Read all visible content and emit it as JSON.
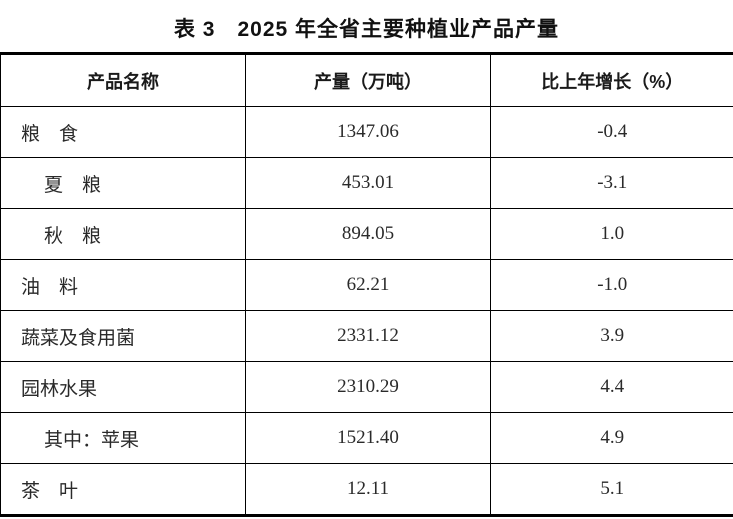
{
  "title": "表 3　2025 年全省主要种植业产品产量",
  "table": {
    "headers": [
      "产品名称",
      "产量（万吨）",
      "比上年增长（%）"
    ],
    "rows": [
      {
        "name": "粮　食",
        "output": "1347.06",
        "growth": "-0.4"
      },
      {
        "name": "夏　粮",
        "output": "453.01",
        "growth": "-3.1"
      },
      {
        "name": "秋　粮",
        "output": "894.05",
        "growth": "1.0"
      },
      {
        "name": "油　料",
        "output": "62.21",
        "growth": "-1.0"
      },
      {
        "name": "蔬菜及食用菌",
        "output": "2331.12",
        "growth": "3.9"
      },
      {
        "name": "园林水果",
        "output": "2310.29",
        "growth": "4.4"
      },
      {
        "name": "其中：苹果",
        "output": "1521.40",
        "growth": "4.9"
      },
      {
        "name": "茶　叶",
        "output": "12.11",
        "growth": "5.1"
      }
    ]
  }
}
